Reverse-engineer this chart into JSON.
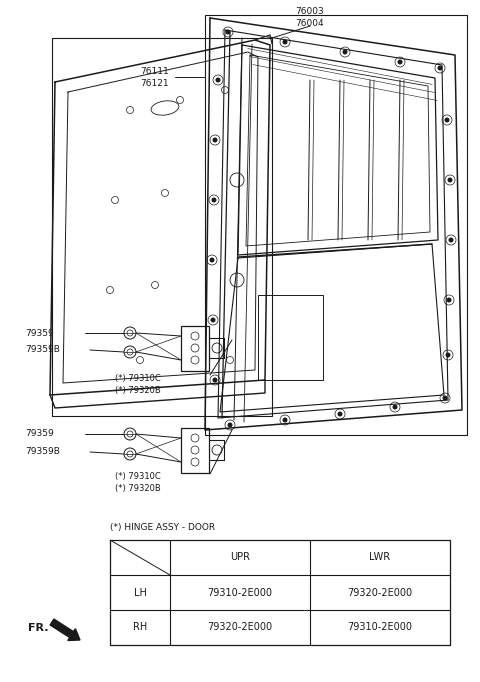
{
  "bg_color": "#ffffff",
  "line_color": "#1a1a1a",
  "fig_width": 4.8,
  "fig_height": 6.82,
  "dpi": 100,
  "font_size_labels": 6.5,
  "font_size_table": 7.5,
  "table_title": "(*) HINGE ASSY - DOOR",
  "table_headers": [
    "",
    "UPR",
    "LWR"
  ],
  "table_rows": [
    [
      "LH",
      "79310-2E000",
      "79320-2E000"
    ],
    [
      "RH",
      "79320-2E000",
      "79310-2E000"
    ]
  ]
}
